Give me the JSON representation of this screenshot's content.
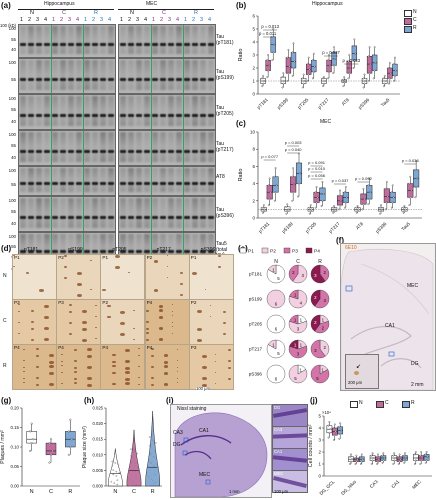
{
  "panels": {
    "a": "(a)",
    "b": "(b)",
    "c": "(c)",
    "d": "(d)",
    "e": "(e)",
    "f": "(f)",
    "g": "(g)",
    "h": "(h)",
    "i": "(i)",
    "j": "(j)"
  },
  "blot": {
    "region_hippo": "Hippocampus",
    "region_mec": "MEC",
    "groups": [
      "N",
      "C",
      "R"
    ],
    "lanes": [
      "1",
      "2",
      "3",
      "4"
    ],
    "kd_unit": "100 (kD)",
    "rows": [
      {
        "label": "Tau (pT181)",
        "mw": [
          "100",
          "55",
          "40"
        ]
      },
      {
        "label": "Tau (pS199)",
        "mw": [
          "100",
          "55"
        ]
      },
      {
        "label": "Tau (pT205)",
        "mw": [
          "100",
          "55",
          "40"
        ]
      },
      {
        "label": "Tau (pT217)",
        "mw": [
          "100",
          "55",
          "40"
        ]
      },
      {
        "label": "AT8",
        "mw": [
          "100",
          "55"
        ]
      },
      {
        "label": "Tau (pS396)",
        "mw": [
          "100",
          "55",
          "40"
        ]
      },
      {
        "label": "Tau5 (total tau)",
        "mw": [
          "100",
          "55",
          "40"
        ]
      },
      {
        "label": "β-actin",
        "mw": [
          "43"
        ]
      }
    ]
  },
  "legend": {
    "items": [
      {
        "name": "N",
        "color": "#ffffff"
      },
      {
        "name": "C",
        "color": "#c06d9e"
      },
      {
        "name": "R",
        "color": "#7ea7d3"
      }
    ]
  },
  "chart_b": {
    "title": "Hippocampus",
    "ylabel": "Ratio",
    "yticks": [
      "0",
      "1",
      "2",
      "3",
      "4",
      "5",
      "6"
    ],
    "categories": [
      "pT181",
      "pS199",
      "pT205",
      "pT217",
      "AT8",
      "pS396",
      "Tau5"
    ],
    "pvalues": [
      {
        "text": "p = 0.013"
      },
      {
        "text": "p = 0.011"
      },
      {
        "text": "p = 0.037"
      },
      {
        "text": "p = 0.023"
      }
    ]
  },
  "chart_c": {
    "title": "MEC",
    "ylabel": "Ratio",
    "yticks": [
      "0",
      "2",
      "4",
      "6",
      "8",
      "10"
    ],
    "categories": [
      "pT181",
      "pS199",
      "pT205",
      "pT217",
      "AT8",
      "pS396",
      "Tau5"
    ],
    "pvalues": [
      {
        "text": "p = 0.003"
      },
      {
        "text": "p = 0.040"
      },
      {
        "text": "p = 0.077"
      },
      {
        "text": "p = 0.091"
      },
      {
        "text": "p = 0.010"
      },
      {
        "text": "p = 0.056"
      },
      {
        "text": "p = 0.037"
      },
      {
        "text": "p = 0.092"
      },
      {
        "text": "p = 0.036"
      }
    ]
  },
  "ihc": {
    "columns": [
      "pT181",
      "pS199",
      "pT205",
      "pT217",
      "pS396"
    ],
    "rows": [
      "N",
      "C",
      "R"
    ],
    "tiles": [
      [
        "P1",
        "P2",
        "P1",
        "P2",
        "P1"
      ],
      [
        "P3",
        "P3",
        "P2",
        "P4",
        "P2"
      ],
      [
        "P4",
        "P4",
        "P4",
        "P4",
        "P3"
      ]
    ],
    "scale": "100 μm"
  },
  "pies": {
    "legend": [
      {
        "name": "P1",
        "color": "#ffffff"
      },
      {
        "name": "P2",
        "color": "#f3cfe2"
      },
      {
        "name": "P3",
        "color": "#d473a8"
      },
      {
        "name": "P4",
        "color": "#8c1a4f"
      }
    ],
    "cols": [
      "N",
      "C",
      "R"
    ],
    "rows": [
      {
        "label": "pT181",
        "pies": [
          [
            5,
            1,
            0,
            0
          ],
          [
            0,
            3,
            2,
            0
          ],
          [
            0,
            0,
            2,
            3
          ]
        ]
      },
      {
        "label": "pS199",
        "pies": [
          [
            0,
            6,
            0,
            0
          ],
          [
            0,
            4,
            1,
            0
          ],
          [
            0,
            0,
            3,
            2
          ]
        ]
      },
      {
        "label": "pT205",
        "pies": [
          [
            6,
            0,
            0,
            0
          ],
          [
            1,
            3,
            1,
            0
          ],
          [
            0,
            1,
            2,
            2
          ]
        ]
      },
      {
        "label": "pT217",
        "pies": [
          [
            5,
            1,
            0,
            0
          ],
          [
            0,
            1,
            3,
            1
          ],
          [
            0,
            2,
            3,
            0
          ]
        ]
      },
      {
        "label": "pS396",
        "pies": [
          [
            6,
            0,
            0,
            0
          ],
          [
            1,
            5,
            0,
            0
          ],
          [
            0,
            1,
            5,
            0
          ]
        ]
      }
    ]
  },
  "f": {
    "stain": "6E10",
    "mec": "MEC",
    "ca1": "CA1",
    "dg": "DG",
    "scale": "2 mm",
    "inset_scale": "200 μm"
  },
  "chart_g": {
    "ylabel": "Plaques / mm²",
    "yticks": [
      "0.00",
      "0.05",
      "0.10",
      "0.15",
      "0.20"
    ],
    "categories": [
      "N",
      "C",
      "R"
    ]
  },
  "chart_h": {
    "ylabel": "Plaque size (mm²)",
    "yticks": [
      "0.000",
      "0.005",
      "0.010",
      "0.015",
      "0.020",
      "0.025"
    ],
    "categories": [
      "N",
      "C",
      "R"
    ]
  },
  "nissl": {
    "title": "Nissl staining",
    "ca3": "CA3",
    "ca1": "CA1",
    "dg": "DG",
    "mec": "MEC",
    "scale": "1 mm",
    "insets": [
      {
        "label": "DG"
      },
      {
        "label": "CA3"
      },
      {
        "label": "CA1"
      },
      {
        "label": "MEC"
      }
    ],
    "inset_scale": "100 μm"
  },
  "chart_j": {
    "ylabel": "Cell counts / mm²",
    "yticks": [
      "0",
      "1",
      "2",
      "3",
      "4",
      "5"
    ],
    "categories": [
      "DG_GCL",
      "DG_hilus",
      "CA3",
      "CA1",
      "MEC"
    ],
    "yunit": "×10⁴"
  },
  "chart_data": [
    {
      "type": "box",
      "id": "b",
      "title": "Hippocampus",
      "ylabel": "Ratio",
      "ylim": [
        0,
        6
      ],
      "categories": [
        "pT181",
        "pS199",
        "pT205",
        "pT217",
        "AT8",
        "pS396",
        "Tau5"
      ],
      "series": [
        {
          "name": "N",
          "values": [
            [
              0.6,
              0.8,
              1.0,
              1.2,
              1.4
            ],
            [
              0.5,
              0.8,
              1.0,
              1.3,
              1.6
            ],
            [
              0.5,
              0.8,
              1.0,
              1.2,
              1.5
            ],
            [
              0.6,
              0.8,
              1.0,
              1.2,
              1.3
            ],
            [
              0.6,
              0.9,
              1.0,
              1.1,
              1.3
            ],
            [
              0.5,
              0.8,
              1.0,
              1.2,
              1.5
            ],
            [
              0.6,
              0.8,
              1.0,
              1.2,
              1.4
            ]
          ]
        },
        {
          "name": "C",
          "values": [
            [
              1.3,
              1.8,
              2.2,
              2.6,
              3.0
            ],
            [
              1.0,
              1.6,
              2.1,
              2.8,
              3.4
            ],
            [
              1.0,
              1.5,
              1.9,
              2.3,
              2.8
            ],
            [
              1.2,
              1.7,
              2.2,
              2.6,
              3.0
            ],
            [
              1.2,
              1.6,
              2.0,
              2.5,
              3.0
            ],
            [
              1.0,
              1.6,
              2.3,
              2.9,
              3.6
            ],
            [
              0.8,
              1.2,
              1.6,
              2.0,
              2.4
            ]
          ]
        },
        {
          "name": "R",
          "values": [
            [
              2.6,
              3.2,
              3.8,
              4.4,
              5.0
            ],
            [
              1.4,
              2.0,
              2.5,
              3.2,
              3.9
            ],
            [
              1.2,
              1.7,
              2.1,
              2.6,
              3.1
            ],
            [
              1.6,
              2.2,
              2.7,
              3.2,
              3.6
            ],
            [
              2.0,
              2.6,
              3.1,
              3.7,
              4.2
            ],
            [
              1.2,
              1.8,
              2.4,
              3.0,
              3.6
            ],
            [
              1.0,
              1.4,
              1.8,
              2.3,
              2.8
            ]
          ]
        }
      ]
    },
    {
      "type": "box",
      "id": "c",
      "title": "MEC",
      "ylabel": "Ratio",
      "ylim": [
        0,
        10
      ],
      "categories": [
        "pT181",
        "pS199",
        "pT205",
        "pT217",
        "AT8",
        "pS396",
        "Tau5"
      ],
      "series": [
        {
          "name": "N",
          "values": [
            [
              0.6,
              0.8,
              1.0,
              1.2,
              1.5
            ],
            [
              0.5,
              0.8,
              1.0,
              1.3,
              1.6
            ],
            [
              0.5,
              0.8,
              1.0,
              1.2,
              1.5
            ],
            [
              0.6,
              0.8,
              1.0,
              1.2,
              1.4
            ],
            [
              0.6,
              0.8,
              1.0,
              1.2,
              1.4
            ],
            [
              0.5,
              0.8,
              1.0,
              1.2,
              1.5
            ],
            [
              0.6,
              0.8,
              1.0,
              1.2,
              1.4
            ]
          ]
        },
        {
          "name": "C",
          "values": [
            [
              1.5,
              2.2,
              3.0,
              3.8,
              4.6
            ],
            [
              2.0,
              3.0,
              3.9,
              4.8,
              5.8
            ],
            [
              1.2,
              1.8,
              2.4,
              3.0,
              3.6
            ],
            [
              1.0,
              1.5,
              2.0,
              2.6,
              3.2
            ],
            [
              1.0,
              1.6,
              2.2,
              2.8,
              3.4
            ],
            [
              1.0,
              1.8,
              2.5,
              3.4,
              4.2
            ],
            [
              1.5,
              2.4,
              3.2,
              4.0,
              4.8
            ]
          ]
        },
        {
          "name": "R",
          "values": [
            [
              2.0,
              3.0,
              3.8,
              4.8,
              5.8
            ],
            [
              2.5,
              4.0,
              5.2,
              6.4,
              7.5
            ],
            [
              1.4,
              2.0,
              2.8,
              3.5,
              4.2
            ],
            [
              1.2,
              1.8,
              2.4,
              3.0,
              3.6
            ],
            [
              1.6,
              2.2,
              3.0,
              3.8,
              4.6
            ],
            [
              1.2,
              1.8,
              2.4,
              3.0,
              3.8
            ],
            [
              2.4,
              3.6,
              4.6,
              5.6,
              6.6
            ]
          ]
        }
      ]
    },
    {
      "type": "box",
      "id": "g",
      "ylabel": "Plaques / mm²",
      "ylim": [
        0,
        0.2
      ],
      "categories": [
        "N",
        "C",
        "R"
      ],
      "series": [
        {
          "name": "N",
          "values": [
            0.09,
            0.11,
            0.12,
            0.14,
            0.16
          ]
        },
        {
          "name": "C",
          "values": [
            0.06,
            0.08,
            0.09,
            0.11,
            0.12
          ]
        },
        {
          "name": "R",
          "values": [
            0.08,
            0.1,
            0.12,
            0.14,
            0.17
          ]
        }
      ]
    },
    {
      "type": "violin",
      "id": "h",
      "ylabel": "Plaque size (mm²)",
      "ylim": [
        0,
        0.025
      ],
      "categories": [
        "N",
        "C",
        "R"
      ],
      "series": [
        {
          "name": "N",
          "median": 0.004,
          "max": 0.012
        },
        {
          "name": "C",
          "median": 0.005,
          "max": 0.018
        },
        {
          "name": "R",
          "median": 0.006,
          "max": 0.024
        }
      ]
    },
    {
      "type": "box",
      "id": "j",
      "ylabel": "Cell counts / mm²",
      "ylim": [
        0,
        5
      ],
      "categories": [
        "DG_GCL",
        "DG_hilus",
        "CA3",
        "CA1",
        "MEC"
      ],
      "series": [
        {
          "name": "N",
          "values": [
            [
              3.2,
              3.6,
              3.9,
              4.2,
              4.5
            ],
            [
              1.0,
              1.2,
              1.4,
              1.6,
              1.8
            ],
            [
              1.0,
              1.3,
              1.5,
              1.7,
              1.9
            ],
            [
              1.0,
              1.3,
              1.5,
              1.7,
              1.9
            ],
            [
              1.0,
              1.3,
              1.5,
              1.8,
              2.0
            ]
          ]
        },
        {
          "name": "C",
          "values": [
            [
              3.0,
              3.4,
              3.7,
              4.0,
              4.3
            ],
            [
              1.0,
              1.2,
              1.4,
              1.5,
              1.7
            ],
            [
              1.0,
              1.2,
              1.4,
              1.6,
              1.8
            ],
            [
              1.0,
              1.2,
              1.4,
              1.6,
              1.8
            ],
            [
              1.0,
              1.3,
              1.5,
              1.7,
              2.0
            ]
          ]
        },
        {
          "name": "R",
          "values": [
            [
              3.1,
              3.5,
              3.8,
              4.1,
              4.4
            ],
            [
              1.0,
              1.2,
              1.4,
              1.6,
              1.8
            ],
            [
              1.1,
              1.3,
              1.5,
              1.7,
              1.9
            ],
            [
              1.1,
              1.3,
              1.5,
              1.7,
              1.9
            ],
            [
              1.1,
              1.3,
              1.6,
              1.8,
              2.0
            ]
          ]
        }
      ]
    }
  ]
}
